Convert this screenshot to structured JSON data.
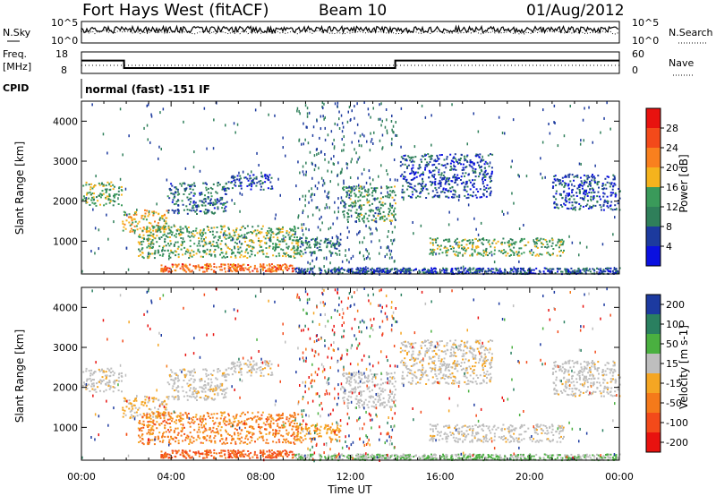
{
  "header": {
    "site": "Fort Hays West (fitACF)",
    "beam": "Beam 10",
    "date": "01/Aug/2012"
  },
  "panels": {
    "nsky_label": "N.Sky",
    "nsearch_label": "N.Search",
    "noise_ticks_left": [
      "10^5",
      "10^0"
    ],
    "noise_ticks_right": [
      "10^5",
      "10^0"
    ],
    "freq_label_line1": "Freq.",
    "freq_label_line2": "[MHz]",
    "freq_ticks": [
      "18",
      "8"
    ],
    "nave_label": "Nave",
    "nave_ticks": [
      "60",
      "0"
    ],
    "cpid_label": "CPID",
    "cpid_text": "normal (fast) -151 IF"
  },
  "power_scale": {
    "label": "Power [dB]",
    "ticks": [
      "28",
      "24",
      "20",
      "16",
      "12",
      "8",
      "4"
    ],
    "colors": [
      "#e8120f",
      "#f34a1a",
      "#f9801e",
      "#f5b31d",
      "#3a9a5a",
      "#2f7f5a",
      "#1c3a9e",
      "#0a10e0"
    ]
  },
  "velocity_scale": {
    "label": "Velocity [m s-1]",
    "ticks": [
      "200",
      "100",
      "50",
      "15",
      "-15",
      "-50",
      "-100",
      "-200"
    ],
    "colors": [
      "#1c3aa0",
      "#2a8060",
      "#4ab040",
      "#bebebe",
      "#f5a623",
      "#f57a1a",
      "#f34a1a",
      "#e8120f"
    ]
  },
  "chart_data": {
    "type": "heatmap",
    "xlabel": "Time UT",
    "ylabel": "Slant Range [km]",
    "x_ticks": [
      "00:00",
      "04:00",
      "08:00",
      "12:00",
      "16:00",
      "20:00",
      "00:00"
    ],
    "y_ticks": [
      "1000",
      "2000",
      "3000",
      "4000"
    ],
    "xlim": [
      0,
      24
    ],
    "ylim": [
      180,
      4500
    ],
    "freq_steps": [
      {
        "t0": 0,
        "t1": 1.9,
        "mhz": 14
      },
      {
        "t0": 1.9,
        "t1": 14.0,
        "mhz": 10.5
      },
      {
        "t0": 14.0,
        "t1": 24,
        "mhz": 14
      }
    ],
    "echo_regions": [
      {
        "t0": 0.0,
        "t1": 1.8,
        "r0": 1900,
        "r1": 2500,
        "power_db": 14,
        "velocity": 0
      },
      {
        "t0": 1.8,
        "t1": 3.8,
        "r0": 1250,
        "r1": 1800,
        "power_db": 18,
        "velocity": -20
      },
      {
        "t0": 3.8,
        "t1": 6.5,
        "r0": 1700,
        "r1": 2500,
        "power_db": 8,
        "velocity": 0
      },
      {
        "t0": 6.5,
        "t1": 8.5,
        "r0": 2300,
        "r1": 2700,
        "power_db": 6,
        "velocity": 0
      },
      {
        "t0": 2.5,
        "t1": 9.8,
        "r0": 600,
        "r1": 1400,
        "power_db": 14,
        "velocity": -60
      },
      {
        "t0": 9.5,
        "t1": 11.6,
        "r0": 700,
        "r1": 1100,
        "power_db": 10,
        "velocity": -40
      },
      {
        "t0": 3.5,
        "t1": 9.5,
        "r0": 250,
        "r1": 450,
        "power_db": 24,
        "velocity": -80
      },
      {
        "t0": 11.6,
        "t1": 14.0,
        "r0": 1500,
        "r1": 2400,
        "power_db": 12,
        "velocity": 10
      },
      {
        "t0": 14.2,
        "t1": 18.3,
        "r0": 2100,
        "r1": 3200,
        "power_db": 6,
        "velocity": -5
      },
      {
        "t0": 15.5,
        "t1": 21.5,
        "r0": 650,
        "r1": 1100,
        "power_db": 14,
        "velocity": 0
      },
      {
        "t0": 21.0,
        "t1": 24.0,
        "r0": 1800,
        "r1": 2700,
        "power_db": 6,
        "velocity": 0
      },
      {
        "t0": 9.5,
        "t1": 24.0,
        "r0": 200,
        "r1": 350,
        "power_db": 6,
        "velocity": 30
      }
    ]
  }
}
